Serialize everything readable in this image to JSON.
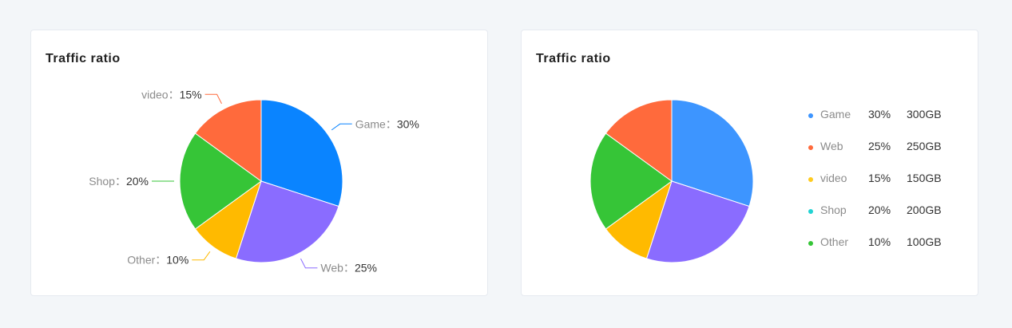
{
  "cards": [
    {
      "title": "Traffic ratio"
    },
    {
      "title": "Traffic ratio"
    }
  ],
  "chart_data": [
    {
      "type": "pie",
      "title": "Traffic ratio",
      "label_separator": "：",
      "slices": [
        {
          "name": "Game",
          "percent": "30%",
          "color": "#0a84ff"
        },
        {
          "name": "Web",
          "percent": "25%",
          "color": "#8a6cff"
        },
        {
          "name": "Other",
          "percent": "10%",
          "color": "#ffba00"
        },
        {
          "name": "Shop",
          "percent": "20%",
          "color": "#36c537"
        },
        {
          "name": "video",
          "percent": "15%",
          "color": "#ff6a3c"
        }
      ]
    },
    {
      "type": "pie",
      "title": "Traffic ratio",
      "slices": [
        {
          "name": "Game",
          "percent": "30%",
          "color": "#3d95ff"
        },
        {
          "name": "Web",
          "percent": "25%",
          "color": "#8a6cff"
        },
        {
          "name": "Other",
          "percent": "10%",
          "color": "#ffba00"
        },
        {
          "name": "Shop",
          "percent": "20%",
          "color": "#36c537"
        },
        {
          "name": "video",
          "percent": "15%",
          "color": "#ff6a3c"
        }
      ],
      "legend": [
        {
          "name": "Game",
          "percent": "30%",
          "size": "300GB",
          "color": "#3d95ff"
        },
        {
          "name": "Web",
          "percent": "25%",
          "size": "250GB",
          "color": "#ff6a3c"
        },
        {
          "name": "video",
          "percent": "15%",
          "size": "150GB",
          "color": "#ffcb1f"
        },
        {
          "name": "Shop",
          "percent": "20%",
          "size": "200GB",
          "color": "#22d3d3"
        },
        {
          "name": "Other",
          "percent": "10%",
          "size": "100GB",
          "color": "#36c537"
        }
      ]
    }
  ]
}
